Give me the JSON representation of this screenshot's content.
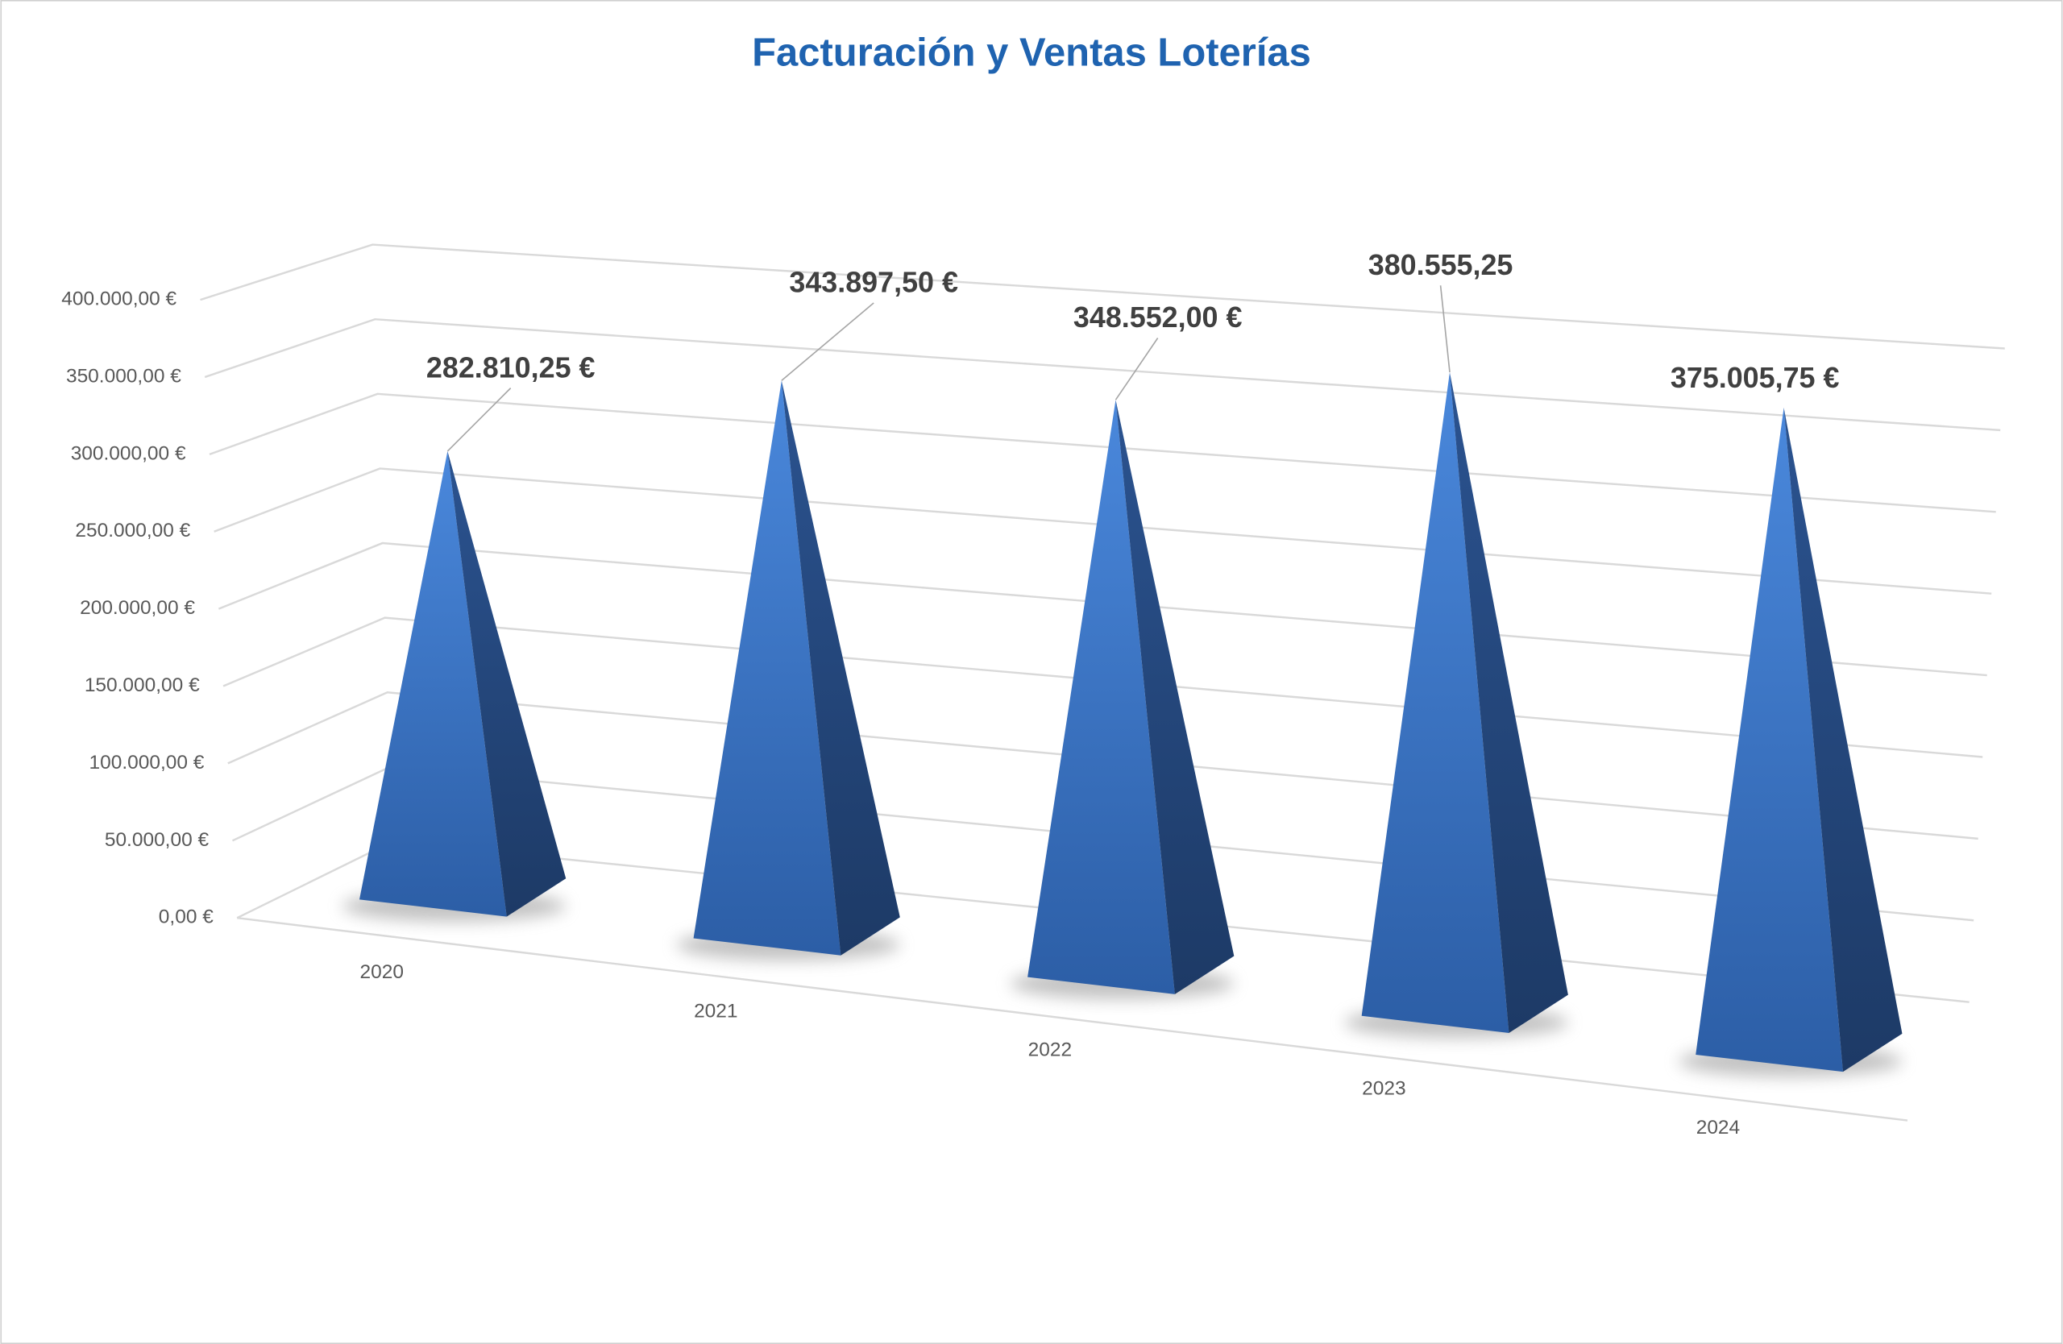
{
  "chart_data": {
    "type": "pyramid3d",
    "title": "Facturación y Ventas Loterías",
    "categories": [
      "2020",
      "2021",
      "2022",
      "2023",
      "2024"
    ],
    "values": [
      282810.25,
      343897.5,
      348552,
      380555.25,
      375005.75
    ],
    "value_labels": [
      "282.810,25 €",
      "343.897,50 €",
      "348.552,00 €",
      "380.555,25",
      "375.005,75 €"
    ],
    "color": "#3a73c4",
    "ylim": [
      0,
      400000
    ],
    "yticks": [
      {
        "value": 0,
        "label": "0,00 €"
      },
      {
        "value": 50000,
        "label": "50.000,00 €"
      },
      {
        "value": 100000,
        "label": "100.000,00 €"
      },
      {
        "value": 150000,
        "label": "150.000,00 €"
      },
      {
        "value": 200000,
        "label": "200.000,00 €"
      },
      {
        "value": 250000,
        "label": "250.000,00 €"
      },
      {
        "value": 300000,
        "label": "300.000,00 €"
      },
      {
        "value": 350000,
        "label": "350.000,00 €"
      },
      {
        "value": 400000,
        "label": "400.000,00 €"
      }
    ],
    "grid": true
  }
}
